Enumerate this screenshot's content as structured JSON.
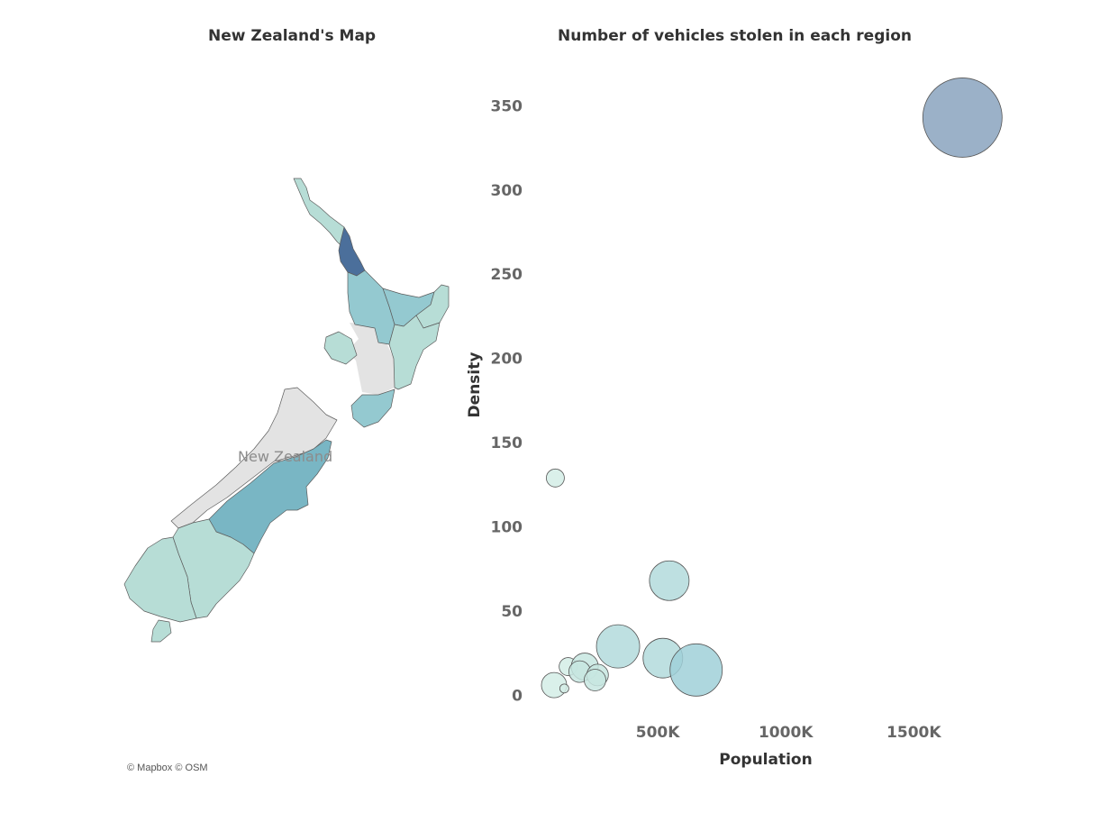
{
  "map": {
    "title": "New Zealand's Map",
    "label": "New Zealand",
    "attribution": "© Mapbox © OSM",
    "colors": {
      "land_gray": "#e3e3e3",
      "low": "#b7ddd6",
      "mid": "#94c9d0",
      "high": "#79b6c4",
      "top": "#4b6f9b",
      "border": "#5c5c5c"
    }
  },
  "chart_data": {
    "type": "scatter",
    "title": "Number of vehicles stolen in each region",
    "xlabel": "Population",
    "ylabel": "Density",
    "xlim": [
      0,
      1900000
    ],
    "ylim": [
      -10,
      370
    ],
    "xticks": [
      500000,
      1000000,
      1500000
    ],
    "xtick_labels": [
      "500K",
      "1000K",
      "1500K"
    ],
    "yticks": [
      0,
      50,
      100,
      150,
      200,
      250,
      300,
      350
    ],
    "grid": false,
    "points": [
      {
        "x": 1690000,
        "y": 343,
        "size": 44,
        "color": "#8aa3be"
      },
      {
        "x": 100000,
        "y": 129,
        "size": 10,
        "color": "#d3ede6"
      },
      {
        "x": 545000,
        "y": 68,
        "size": 22,
        "color": "#b3dbdc"
      },
      {
        "x": 345000,
        "y": 29,
        "size": 24,
        "color": "#b3dbdc"
      },
      {
        "x": 520000,
        "y": 22,
        "size": 22,
        "color": "#b3dbdc"
      },
      {
        "x": 650000,
        "y": 15,
        "size": 29,
        "color": "#a0d0d8"
      },
      {
        "x": 150000,
        "y": 17,
        "size": 10,
        "color": "#d3ede6"
      },
      {
        "x": 215000,
        "y": 17,
        "size": 15,
        "color": "#c7e6e0"
      },
      {
        "x": 195000,
        "y": 14,
        "size": 12,
        "color": "#c7e6e0"
      },
      {
        "x": 265000,
        "y": 12,
        "size": 12,
        "color": "#c7e6e0"
      },
      {
        "x": 255000,
        "y": 9,
        "size": 12,
        "color": "#c7e6e0"
      },
      {
        "x": 95000,
        "y": 6,
        "size": 14,
        "color": "#d3ede6"
      },
      {
        "x": 135000,
        "y": 4,
        "size": 5,
        "color": "#d3ede6"
      }
    ]
  }
}
